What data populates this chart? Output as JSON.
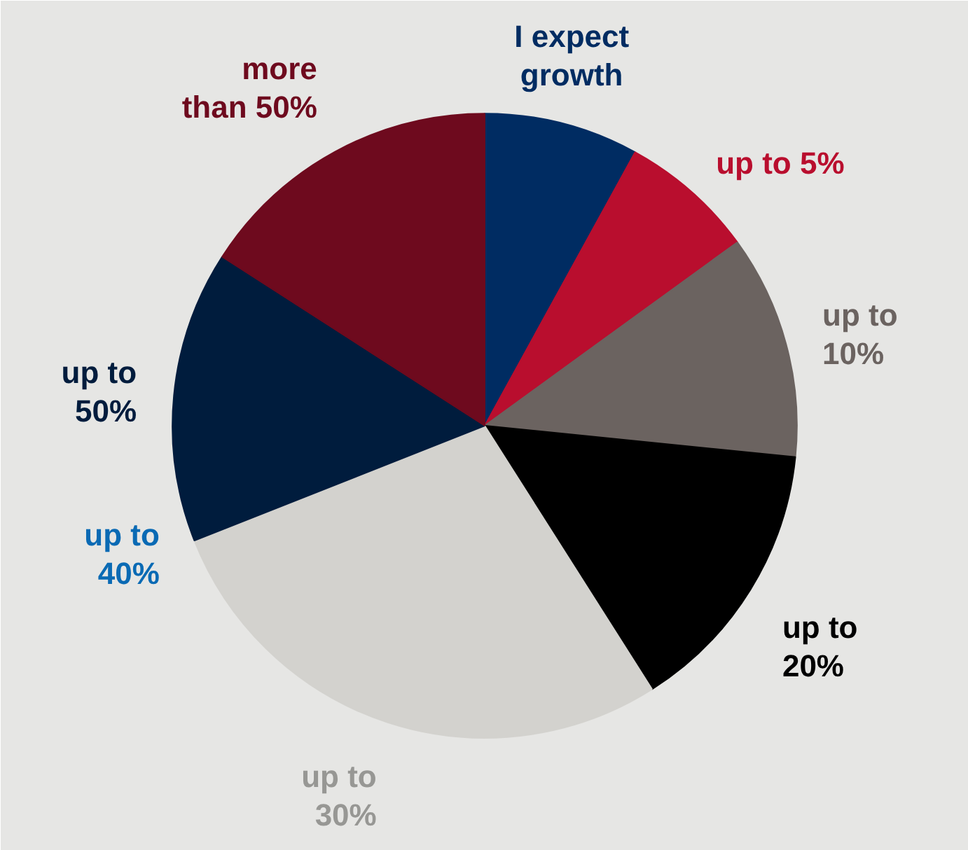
{
  "chart_data": {
    "type": "pie",
    "categories": [
      "I expect growth",
      "up to 5%",
      "up to 10%",
      "up to 20%",
      "up to 30%",
      "up to 40%",
      "up to 50%",
      "more than 50%"
    ],
    "values": [
      8.0,
      7.0,
      11.6,
      14.4,
      28.0,
      0,
      15.1,
      15.9
    ],
    "colors": [
      "#002c62",
      "#b90e2e",
      "#6b6360",
      "#000000",
      "#d3d2ce",
      "#0a6ab4",
      "#001c3d",
      "#6e0a1e"
    ]
  }
}
